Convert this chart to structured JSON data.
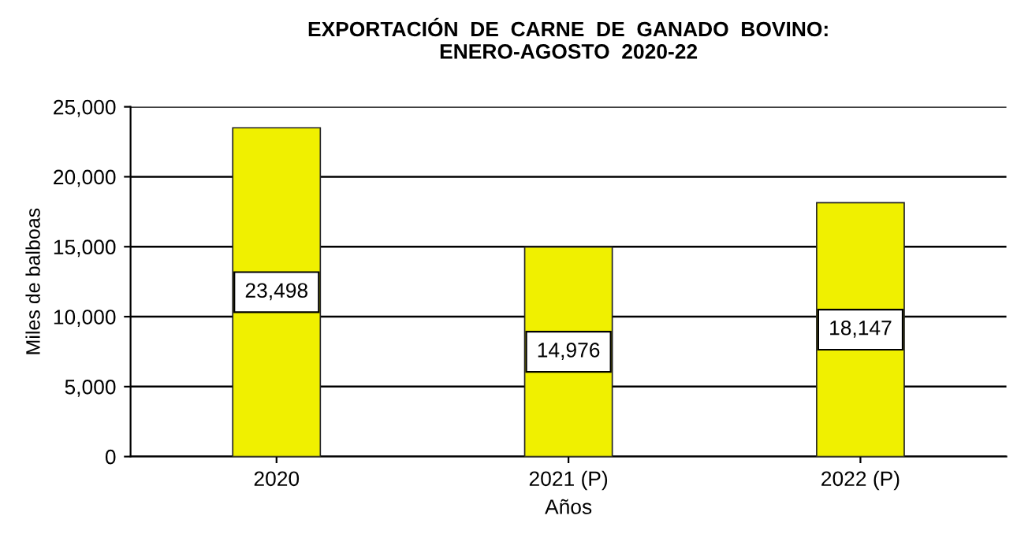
{
  "chart_data": {
    "type": "bar",
    "title": "EXPORTACIÓN  DE  CARNE  DE  GANADO  BOVINO:\nENERO-AGOSTO  2020-22",
    "xlabel": "Años",
    "ylabel": "Miles de balboas",
    "categories": [
      "2020",
      "2021 (P)",
      "2022 (P)"
    ],
    "values": [
      23498,
      14976,
      18147
    ],
    "color": "#f0f000",
    "ylim": [
      0,
      25000
    ],
    "yticks": [
      {
        "value": 0,
        "label": "0"
      },
      {
        "value": 5000,
        "label": "5,000"
      },
      {
        "value": 10000,
        "label": "10,000"
      },
      {
        "value": 15000,
        "label": "15,000"
      },
      {
        "value": 20000,
        "label": "20,000"
      },
      {
        "value": 25000,
        "label": "25,000"
      }
    ],
    "value_labels": [
      "23,498",
      "14,976",
      "18,147"
    ],
    "grid": "y"
  }
}
